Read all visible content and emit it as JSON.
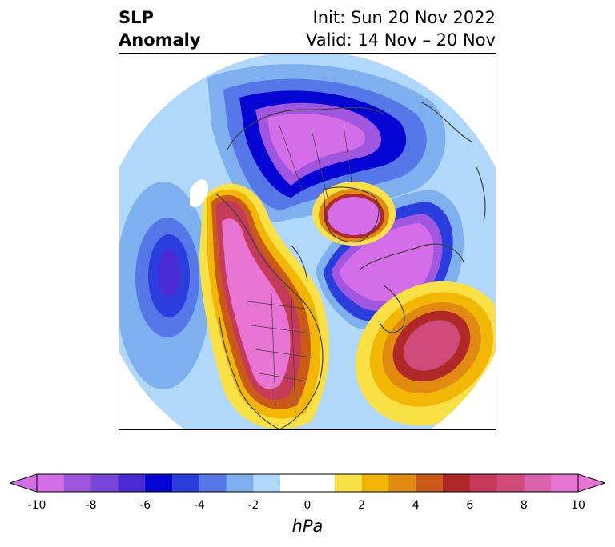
{
  "title": {
    "left_line1": "SLP",
    "left_line2": "Anomaly",
    "right_line1": "Init: Sun 20 Nov 2022",
    "right_line2": "Valid: 14 Nov – 20 Nov"
  },
  "colorbar": {
    "unit": "hPa",
    "ticks": [
      "-10",
      "-8",
      "-6",
      "-4",
      "-2",
      "0",
      "2",
      "4",
      "6",
      "8",
      "10"
    ],
    "colors": [
      "#d36ee8",
      "#a156e0",
      "#7a45da",
      "#4a2bd6",
      "#0505d3",
      "#2a3edd",
      "#5577e8",
      "#7eb0f0",
      "#b0d8fa",
      "#ffffff",
      "#ffffff",
      "#f9e044",
      "#f2b705",
      "#e08a10",
      "#c95a18",
      "#b02828",
      "#c43a58",
      "#d04a7a",
      "#dc62ac",
      "#e874d4"
    ],
    "extend_min_color": "#d36ee8",
    "extend_max_color": "#e874d4"
  },
  "map": {
    "projection": "north polar stereographic",
    "features": [
      "coastlines",
      "country borders",
      "US state borders"
    ],
    "anomaly_centers": [
      {
        "region": "North Pacific",
        "sign": "negative",
        "approx_hpa": "-6"
      },
      {
        "region": "Northern Eurasia / Siberia",
        "sign": "negative",
        "approx_hpa": "-10"
      },
      {
        "region": "Scandinavia / Northern Europe",
        "sign": "negative",
        "approx_hpa": "-10"
      },
      {
        "region": "Western & central North America",
        "sign": "positive",
        "approx_hpa": "10"
      },
      {
        "region": "Greenland",
        "sign": "positive",
        "approx_hpa": "10"
      },
      {
        "region": "Central North Atlantic",
        "sign": "positive",
        "approx_hpa": "8"
      }
    ]
  }
}
